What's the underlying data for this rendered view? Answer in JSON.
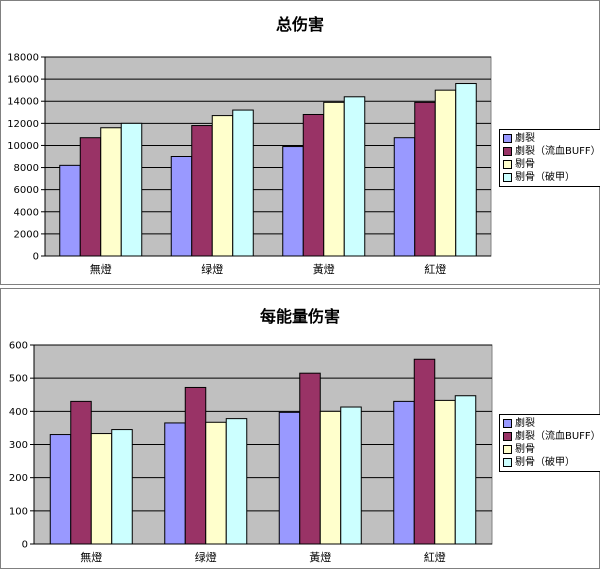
{
  "colors": {
    "plot_bg": "#c0c0c0",
    "series": [
      "#9999ff",
      "#993366",
      "#ffffcc",
      "#ccffff"
    ]
  },
  "chart_data": [
    {
      "type": "bar",
      "title": "总伤害",
      "categories": [
        "無燈",
        "绿燈",
        "黃燈",
        "紅燈"
      ],
      "series": [
        {
          "name": "劇裂",
          "values": [
            8200,
            9000,
            9900,
            10700
          ]
        },
        {
          "name": "劇裂（流血BUFF）",
          "values": [
            10700,
            11800,
            12800,
            13900
          ]
        },
        {
          "name": "剔骨",
          "values": [
            11600,
            12700,
            13900,
            15000
          ]
        },
        {
          "name": "剔骨（破甲）",
          "values": [
            12000,
            13200,
            14400,
            15600
          ]
        }
      ],
      "yticks": [
        "0",
        "2000",
        "4000",
        "6000",
        "8000",
        "10000",
        "12000",
        "14000",
        "16000",
        "18000"
      ],
      "ylim": [
        0,
        18000
      ],
      "grid": true,
      "legend": "right"
    },
    {
      "type": "bar",
      "title": "每能量伤害",
      "categories": [
        "無燈",
        "绿燈",
        "黃燈",
        "紅燈"
      ],
      "series": [
        {
          "name": "劇裂",
          "values": [
            330,
            365,
            397,
            430
          ]
        },
        {
          "name": "劇裂（流血BUFF）",
          "values": [
            430,
            472,
            515,
            557
          ]
        },
        {
          "name": "剔骨",
          "values": [
            333,
            367,
            400,
            433
          ]
        },
        {
          "name": "剔骨（破甲）",
          "values": [
            345,
            378,
            413,
            447
          ]
        }
      ],
      "yticks": [
        "0",
        "100",
        "200",
        "300",
        "400",
        "500",
        "600"
      ],
      "ylim": [
        0,
        600
      ],
      "grid": true,
      "legend": "right"
    }
  ]
}
